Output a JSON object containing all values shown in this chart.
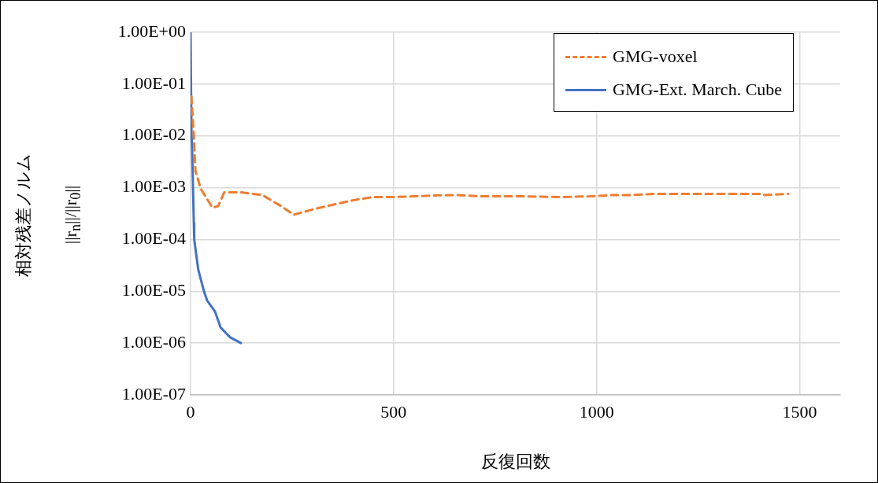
{
  "chart_data": {
    "type": "line",
    "xlabel": "反復回数",
    "ylabel": "相対残差ノルム\n||r$_{n}$||/||r$_{0}$||",
    "log": "y",
    "grid": true,
    "legend": "top right",
    "marker": "none",
    "xlim": [
      0,
      1600
    ],
    "xticks": [
      0,
      500,
      1000,
      1500
    ],
    "ylim": [
      1e-07,
      1
    ],
    "yticks": [
      {
        "value": 1,
        "label": "1.00E+00"
      },
      {
        "value": 0.1,
        "label": "1.00E-01"
      },
      {
        "value": 0.01,
        "label": "1.00E-02"
      },
      {
        "value": 0.001,
        "label": "1.00E-03"
      },
      {
        "value": 0.0001,
        "label": "1.00E-04"
      },
      {
        "value": 1e-05,
        "label": "1.00E-05"
      },
      {
        "value": 1e-06,
        "label": "1.00E-06"
      },
      {
        "value": 1e-07,
        "label": "1.00E-07"
      }
    ],
    "series": [
      {
        "name": "GMG-voxel",
        "color": "#ed7d31",
        "line_style": "dashed",
        "x": [
          2,
          8,
          12,
          25,
          54,
          68,
          83,
          126,
          177,
          223,
          254,
          301,
          351,
          404,
          449,
          501,
          612,
          656,
          715,
          818,
          915,
          986,
          1039,
          1090,
          1142,
          1213,
          1408,
          1413,
          1472
        ],
        "values": [
          0.058,
          0.01,
          0.0021,
          0.00095,
          0.00041,
          0.00044,
          0.00081,
          0.00081,
          0.00072,
          0.00044,
          0.0003,
          0.00038,
          0.00047,
          0.00058,
          0.00066,
          0.00066,
          0.00071,
          0.00072,
          0.00068,
          0.00068,
          0.00066,
          0.00068,
          0.00072,
          0.00072,
          0.00076,
          0.00076,
          0.00076,
          0.00072,
          0.00076
        ]
      },
      {
        "name": "GMG-Ext. March. Cube",
        "color": "#4472c4",
        "line_style": "solid",
        "x": [
          0,
          2,
          4,
          6,
          8,
          9,
          19,
          33,
          41,
          60,
          74,
          97,
          124
        ],
        "values": [
          1,
          0.0141,
          0.005,
          0.001,
          0.00021,
          0.0001,
          2.6e-05,
          1e-05,
          6.6e-06,
          4.1e-06,
          2e-06,
          1.3e-06,
          1e-06
        ]
      }
    ]
  }
}
